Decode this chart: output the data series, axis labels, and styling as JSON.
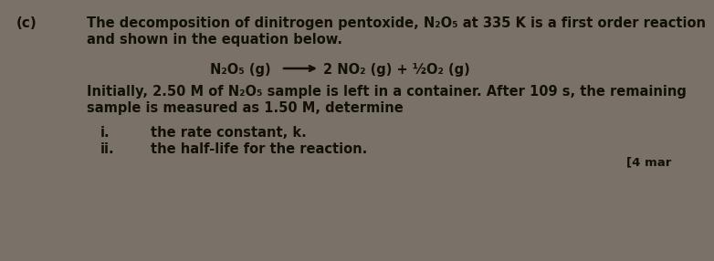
{
  "background_color": "#7a7168",
  "label_c": "(c)",
  "line1": "The decomposition of dinitrogen pentoxide, N₂O₅ at 335 K is a first order reaction",
  "line2": "and shown in the equation below.",
  "equation_left": "N₂O₅ (g)",
  "equation_right": "2 NO₂ (g) + ½O₂ (g)",
  "paragraph": "Initially, 2.50 M of N₂O₅ sample is left in a container. After 109 s, the remaining",
  "paragraph2": "sample is measured as 1.50 M, determine",
  "item_i": "i.",
  "item_ii": "ii.",
  "item_i_text": "the rate constant, k.",
  "item_ii_text": "the half-life for the reaction.",
  "marks": "[4 mar",
  "text_color": "#111008",
  "font_size_body": 10.5,
  "font_size_label": 11.0,
  "font_size_eq": 10.5,
  "font_size_marks": 9.5
}
